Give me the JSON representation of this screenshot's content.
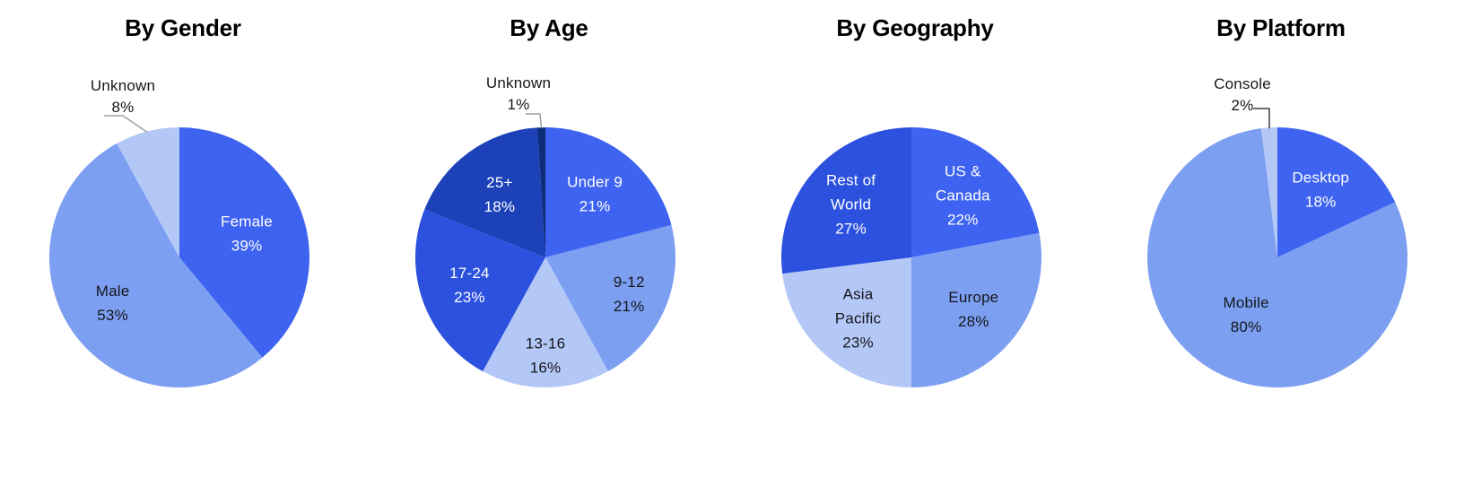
{
  "colors": {
    "page_background": "#ffffff",
    "title_text": "#000000",
    "label_on_dark": "#ffffff",
    "label_on_light": "#14161a",
    "leader_line_gray": "#9aa0a8",
    "leader_line_dark": "#3c3f45"
  },
  "chart_data": [
    {
      "type": "pie",
      "title": "By Gender",
      "units": "percent",
      "start_angle_deg": 0,
      "direction": "clockwise",
      "legend": "labels-on-slices",
      "slices": [
        {
          "label": "Female",
          "value": 39,
          "display": "39%",
          "color": "#3E63F0",
          "label_color": "#ffffff",
          "label_placement": "inside"
        },
        {
          "label": "Male",
          "value": 53,
          "display": "53%",
          "color": "#7D9FF2",
          "label_color": "#14161a",
          "label_placement": "inside"
        },
        {
          "label": "Unknown",
          "value": 8,
          "display": "8%",
          "color": "#B4C8F7",
          "label_color": "#14161a",
          "label_placement": "outside",
          "leader": "leader_line_gray"
        }
      ]
    },
    {
      "type": "pie",
      "title": "By Age",
      "units": "percent",
      "start_angle_deg": 0,
      "direction": "clockwise",
      "legend": "labels-on-slices",
      "slices": [
        {
          "label": "Under 9",
          "value": 21,
          "display": "21%",
          "color": "#3E63F0",
          "label_color": "#ffffff",
          "label_placement": "inside"
        },
        {
          "label": "9-12",
          "value": 21,
          "display": "21%",
          "color": "#7D9FF2",
          "label_color": "#14161a",
          "label_placement": "inside"
        },
        {
          "label": "13-16",
          "value": 16,
          "display": "16%",
          "color": "#B4C8F7",
          "label_color": "#14161a",
          "label_placement": "inside"
        },
        {
          "label": "17-24",
          "value": 23,
          "display": "23%",
          "color": "#2C51DE",
          "label_color": "#ffffff",
          "label_placement": "inside"
        },
        {
          "label": "25+",
          "value": 18,
          "display": "18%",
          "color": "#1C41B8",
          "label_color": "#ffffff",
          "label_placement": "inside"
        },
        {
          "label": "Unknown",
          "value": 1,
          "display": "1%",
          "color": "#0D2C7C",
          "label_color": "#14161a",
          "label_placement": "outside",
          "leader": "leader_line_gray"
        }
      ]
    },
    {
      "type": "pie",
      "title": "By Geography",
      "units": "percent",
      "start_angle_deg": 0,
      "direction": "clockwise",
      "legend": "labels-on-slices",
      "slices": [
        {
          "label": "US &\nCanada",
          "value": 22,
          "display": "22%",
          "color": "#3E63F0",
          "label_color": "#ffffff",
          "label_placement": "inside"
        },
        {
          "label": "Europe",
          "value": 28,
          "display": "28%",
          "color": "#7D9FF2",
          "label_color": "#14161a",
          "label_placement": "inside"
        },
        {
          "label": "Asia\nPacific",
          "value": 23,
          "display": "23%",
          "color": "#B4C8F7",
          "label_color": "#14161a",
          "label_placement": "inside"
        },
        {
          "label": "Rest of\nWorld",
          "value": 27,
          "display": "27%",
          "color": "#2C51DE",
          "label_color": "#ffffff",
          "label_placement": "inside"
        }
      ]
    },
    {
      "type": "pie",
      "title": "By Platform",
      "units": "percent",
      "start_angle_deg": 0,
      "direction": "clockwise",
      "legend": "labels-on-slices",
      "slices": [
        {
          "label": "Desktop",
          "value": 18,
          "display": "18%",
          "color": "#3E63F0",
          "label_color": "#ffffff",
          "label_placement": "inside"
        },
        {
          "label": "Mobile",
          "value": 80,
          "display": "80%",
          "color": "#7D9FF2",
          "label_color": "#14161a",
          "label_placement": "inside"
        },
        {
          "label": "Console",
          "value": 2,
          "display": "2%",
          "color": "#B4C8F7",
          "label_color": "#14161a",
          "label_placement": "outside",
          "leader": "leader_line_dark"
        }
      ]
    }
  ]
}
